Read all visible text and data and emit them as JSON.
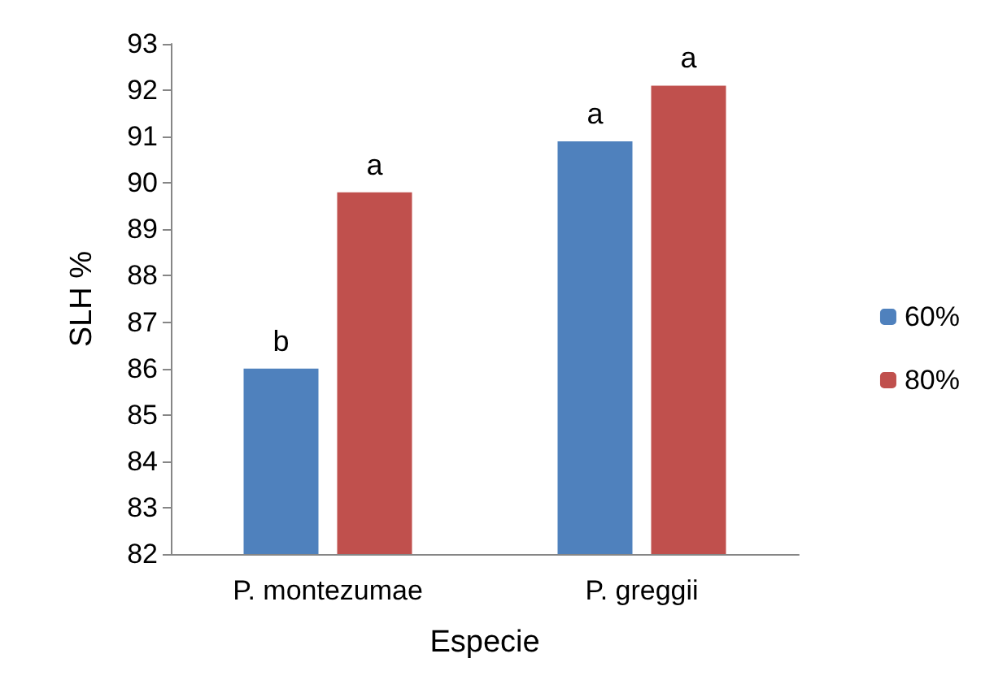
{
  "chart_data": {
    "type": "bar",
    "xlabel": "Especie",
    "ylabel": "SLH %",
    "categories": [
      "P. montezumae",
      "P. greggii"
    ],
    "series": [
      {
        "name": "60%",
        "color": "#4f81bd",
        "values": [
          86.0,
          90.9
        ]
      },
      {
        "name": "80%",
        "color": "#c0504d",
        "values": [
          89.8,
          92.1
        ]
      }
    ],
    "ylim": [
      82,
      93
    ],
    "yticks": [
      82,
      83,
      84,
      85,
      86,
      87,
      88,
      89,
      90,
      91,
      92,
      93
    ],
    "grid": false,
    "legend": "right",
    "annotations": [
      "b",
      "a",
      "a",
      "a"
    ]
  }
}
